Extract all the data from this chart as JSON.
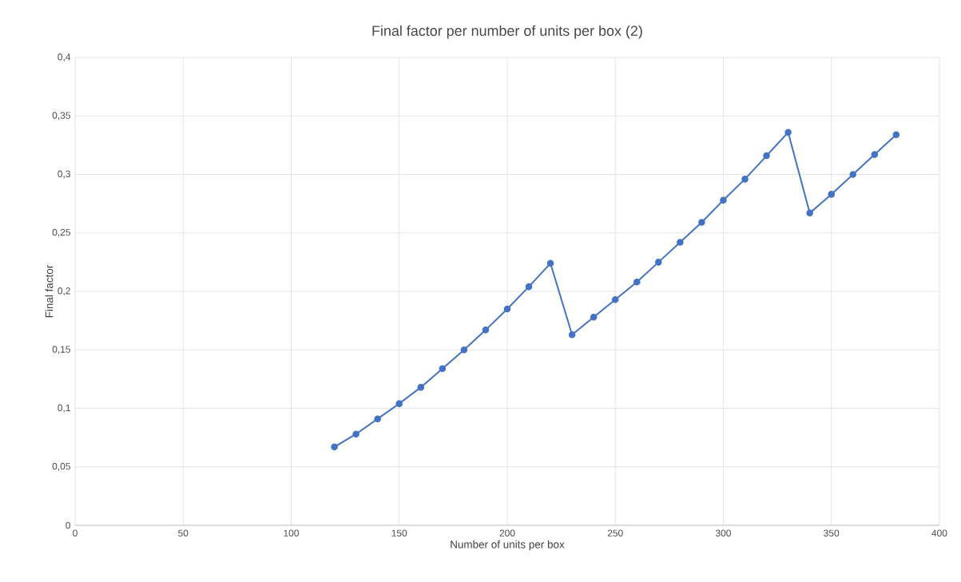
{
  "chart_data": {
    "type": "line",
    "title": "Final factor per number of units per box (2)",
    "xlabel": "Number of units per box",
    "ylabel": "Final factor",
    "x": [
      120,
      130,
      140,
      150,
      160,
      170,
      180,
      190,
      200,
      210,
      220,
      230,
      240,
      250,
      260,
      270,
      280,
      290,
      300,
      310,
      320,
      330,
      340,
      350,
      360,
      370,
      380
    ],
    "series": [
      {
        "color": "#4472c4",
        "values": [
          0.067,
          0.078,
          0.091,
          0.104,
          0.118,
          0.134,
          0.15,
          0.167,
          0.185,
          0.204,
          0.224,
          0.163,
          0.178,
          0.193,
          0.208,
          0.225,
          0.242,
          0.259,
          0.278,
          0.296,
          0.316,
          0.336,
          0.267,
          0.283,
          0.3,
          0.317,
          0.334
        ]
      }
    ],
    "xlim": [
      0,
      400
    ],
    "xticks": [
      0,
      50,
      100,
      150,
      200,
      250,
      300,
      350,
      400
    ],
    "ylim": [
      0,
      0.4
    ],
    "yticks": [
      0,
      {
        "value": 0.05,
        "label": "0,05"
      },
      {
        "value": 0.1,
        "label": "0,1"
      },
      {
        "value": 0.15,
        "label": "0,15"
      },
      {
        "value": 0.2,
        "label": "0,2"
      },
      {
        "value": 0.25,
        "label": "0,25"
      },
      {
        "value": 0.3,
        "label": "0,3"
      },
      {
        "value": 0.35,
        "label": "0,35"
      },
      {
        "value": 0.4,
        "label": "0,4"
      }
    ],
    "grid": true,
    "marker": "circle",
    "line_style": "solid"
  }
}
